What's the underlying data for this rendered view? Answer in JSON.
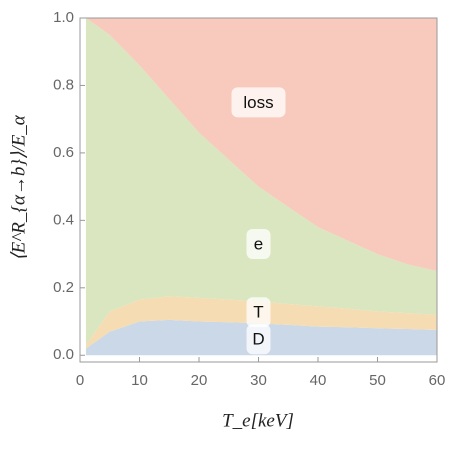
{
  "chart_data": {
    "type": "stacked-area",
    "xlabel": "T_e[keV]",
    "ylabel": "⟨E^R_{α→b}⟩/E_α",
    "x": [
      1,
      5,
      10,
      15,
      20,
      25,
      30,
      35,
      40,
      45,
      50,
      55,
      60
    ],
    "series": [
      {
        "name": "D",
        "color": "#cbd8e7",
        "values": [
          0.02,
          0.07,
          0.1,
          0.105,
          0.1,
          0.098,
          0.095,
          0.09,
          0.085,
          0.083,
          0.08,
          0.078,
          0.075
        ]
      },
      {
        "name": "T",
        "color": "#f6dcb2",
        "values": [
          0.01,
          0.06,
          0.065,
          0.07,
          0.07,
          0.067,
          0.065,
          0.062,
          0.06,
          0.055,
          0.05,
          0.047,
          0.045
        ]
      },
      {
        "name": "e",
        "color": "#d9e6c0",
        "values": [
          0.97,
          0.82,
          0.695,
          0.585,
          0.49,
          0.415,
          0.34,
          0.288,
          0.235,
          0.202,
          0.17,
          0.145,
          0.13
        ]
      },
      {
        "name": "loss",
        "color": "#f8c9bd",
        "values": [
          0,
          0.05,
          0.14,
          0.24,
          0.34,
          0.42,
          0.5,
          0.56,
          0.62,
          0.66,
          0.7,
          0.73,
          0.75
        ]
      }
    ],
    "xlim": [
      0,
      60
    ],
    "ylim": [
      -0.02,
      1.0
    ],
    "xticks": [
      0,
      10,
      20,
      30,
      40,
      50,
      60
    ],
    "yticks": [
      {
        "value": 0,
        "label": "0.0"
      },
      0.2,
      0.4,
      0.6,
      0.8,
      {
        "value": 1,
        "label": "1.0"
      }
    ]
  }
}
